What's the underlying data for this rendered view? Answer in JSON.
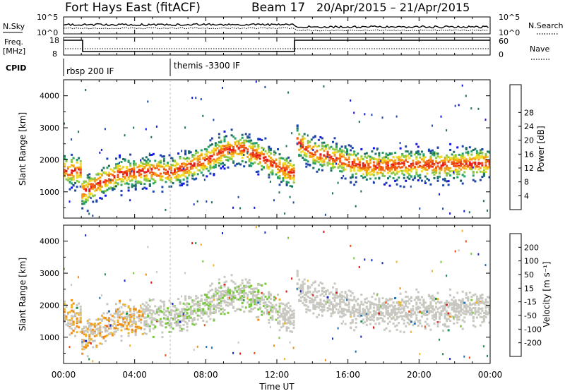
{
  "header": {
    "title": "Fort Hays East (fitACF)",
    "beam": "Beam 17",
    "date_range": "20/Apr/2015 – 21/Apr/2015"
  },
  "left_labels": {
    "nsky": "N.Sky",
    "freq_line1": "Freq.",
    "freq_line2": "[MHz]",
    "cpid": "CPID"
  },
  "right_labels": {
    "nsearch": "N.Search",
    "nave": "Nave"
  },
  "noise_panel": {
    "ytick_top": "10^5",
    "ytick_bottom": "10^0",
    "rtick_top": "10^5",
    "rtick_bottom": "10^0"
  },
  "freq_panel": {
    "left_ticks": [
      "18",
      "8"
    ],
    "right_ticks": [
      "60",
      "0"
    ]
  },
  "cpid_panel": {
    "modes": [
      {
        "label": "rbsp 200 IF",
        "start_hour": 0
      },
      {
        "label": "themis -3300 IF",
        "start_hour": 6
      }
    ]
  },
  "axes": {
    "ylabel": "Slant Range [km]",
    "xlabel": "Time UT",
    "yticks": [
      "1000",
      "2000",
      "3000",
      "4000"
    ],
    "xticks": [
      "00:00",
      "04:00",
      "08:00",
      "12:00",
      "16:00",
      "20:00",
      "00:00"
    ]
  },
  "colorbars": {
    "power": {
      "label": "Power [dB]",
      "ticks": [
        "4",
        "8",
        "12",
        "16",
        "20",
        "24",
        "28"
      ],
      "colors": [
        "#1414e6",
        "#1e46aa",
        "#1e6e64",
        "#28a064",
        "#8cc846",
        "#f0dc28",
        "#f5a014",
        "#f05a14",
        "#e61e1e"
      ]
    },
    "velocity": {
      "label": "Velocity [m s⁻¹]",
      "ticks": [
        "200",
        "100",
        "50",
        "15",
        "-15",
        "-50",
        "-100",
        "-200"
      ],
      "colors": [
        "#1428c8",
        "#1e6eb4",
        "#1e8c50",
        "#78c83c",
        "#c8c8c0",
        "#f0b428",
        "#f08c14",
        "#eb5014",
        "#e11414"
      ]
    }
  },
  "chart_data": [
    {
      "type": "heatmap",
      "name": "Power",
      "xlabel": "Time UT",
      "ylabel": "Slant Range [km]",
      "xlim": [
        0,
        24
      ],
      "ylim": [
        180,
        4500
      ],
      "time_gap_hours": [
        12.9,
        13.0
      ],
      "backscatter_band": {
        "hours": [
          0,
          0.9,
          1.0,
          1.3,
          2,
          3,
          4,
          5,
          6,
          7,
          8,
          9,
          10,
          11,
          12,
          12.9,
          13.0,
          14,
          15,
          16,
          17,
          18,
          19,
          20,
          21,
          22,
          23,
          24
        ],
        "range_km": [
          1650,
          1650,
          1000,
          1050,
          1300,
          1550,
          1600,
          1650,
          1600,
          1800,
          2000,
          2300,
          2350,
          2100,
          1800,
          1550,
          2600,
          2200,
          2100,
          1900,
          1800,
          1800,
          1850,
          1850,
          1850,
          1850,
          1900,
          1900
        ]
      },
      "colorbar": {
        "label": "Power [dB]",
        "range": [
          0,
          30
        ]
      }
    },
    {
      "type": "heatmap",
      "name": "Velocity",
      "xlabel": "Time UT",
      "ylabel": "Slant Range [km]",
      "xlim": [
        0,
        24
      ],
      "ylim": [
        180,
        4500
      ],
      "colorbar": {
        "label": "Velocity [m s⁻¹]",
        "range": [
          -200,
          200
        ]
      }
    }
  ]
}
